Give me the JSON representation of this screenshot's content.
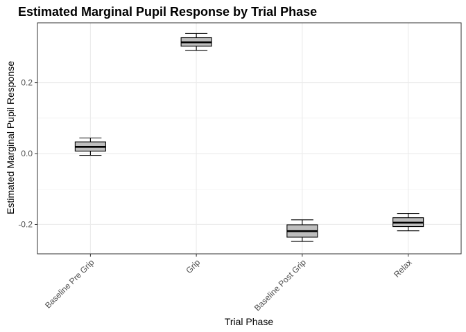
{
  "chart_data": {
    "type": "boxplot",
    "title": "Estimated Marginal Pupil Response by Trial Phase",
    "xlabel": "Trial Phase",
    "ylabel": "Estimated Marginal Pupil Response",
    "categories": [
      "Baseline Pre Grip",
      "Grip",
      "Baseline Post Grip",
      "Relax"
    ],
    "boxes": [
      {
        "category": "Baseline Pre Grip",
        "min": -0.005,
        "q1": 0.007,
        "median": 0.019,
        "q3": 0.033,
        "max": 0.044
      },
      {
        "category": "Grip",
        "min": 0.291,
        "q1": 0.303,
        "median": 0.314,
        "q3": 0.327,
        "max": 0.339
      },
      {
        "category": "Baseline Post Grip",
        "min": -0.248,
        "q1": -0.236,
        "median": -0.219,
        "q3": -0.201,
        "max": -0.187
      },
      {
        "category": "Relax",
        "min": -0.218,
        "q1": -0.206,
        "median": -0.195,
        "q3": -0.181,
        "max": -0.169
      }
    ],
    "y_ticks": [
      -0.2,
      0.0,
      0.2
    ],
    "y_tick_labels": [
      "-0.2",
      "0.0",
      "0.2"
    ],
    "ylim": [
      -0.283,
      0.369
    ],
    "grid": true,
    "box_fill": "#bebebe",
    "line_color": "#000000",
    "grid_color": "#ebebeb"
  }
}
